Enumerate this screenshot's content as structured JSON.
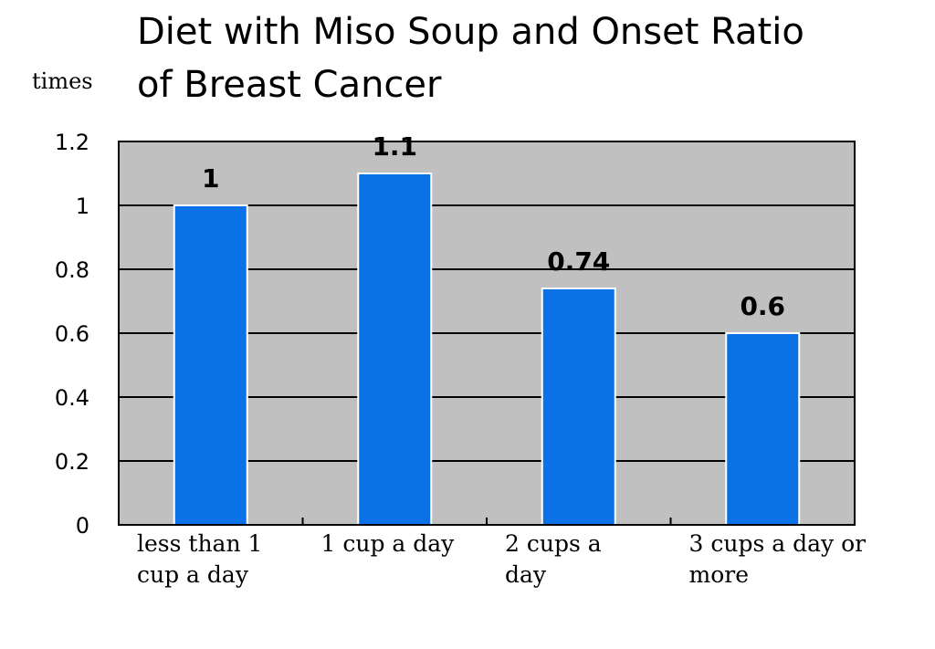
{
  "chart_data": {
    "type": "bar",
    "title_lines": [
      "Diet with Miso Soup and Onset Ratio",
      "of Breast Cancer"
    ],
    "ylabel": "times",
    "categories": [
      [
        "less than 1",
        "cup a day"
      ],
      [
        "1 cup a day"
      ],
      [
        "2 cups a",
        "day"
      ],
      [
        "3 cups a day or",
        "more"
      ]
    ],
    "values": [
      1,
      1.1,
      0.74,
      0.6
    ],
    "data_labels": [
      "1",
      "1.1",
      "0.74",
      "0.6"
    ],
    "ylim": [
      0,
      1.2
    ],
    "yticks": [
      0,
      0.2,
      0.4,
      0.6,
      0.8,
      1,
      1.2
    ],
    "ytick_labels": [
      "0",
      "0.2",
      "0.4",
      "0.6",
      "0.8",
      "1",
      "1.2"
    ],
    "grid": true,
    "colors": {
      "bar": "#0a72e6",
      "bar_edge": "#ffffff",
      "plot_bg": "#c0c0c0",
      "grid": "#000000"
    }
  }
}
